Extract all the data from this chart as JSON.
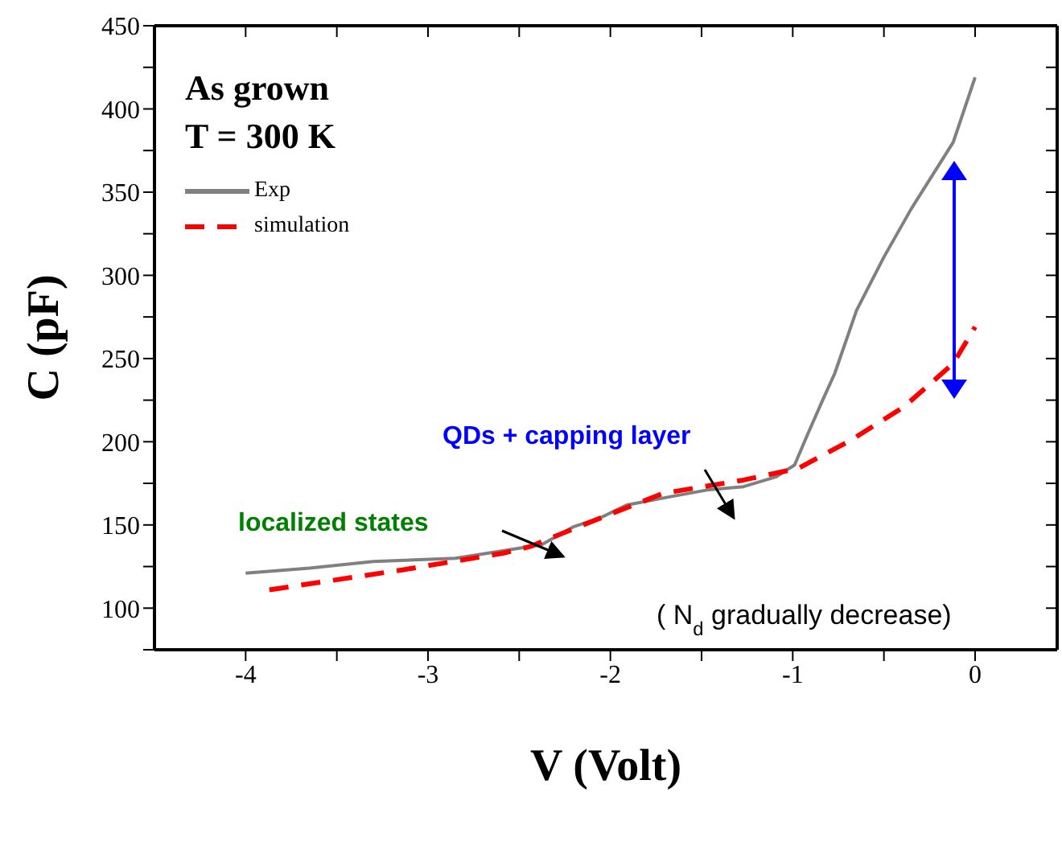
{
  "chart_data": {
    "type": "line",
    "xlabel": "V (Volt)",
    "ylabel": "C (pF)",
    "xlim": [
      -4.5,
      0.45
    ],
    "ylim": [
      75,
      450
    ],
    "xticks": [
      -4,
      {
        "value": -3.5,
        "label": null
      },
      -3,
      {
        "value": -2.5,
        "label": null
      },
      -2,
      {
        "value": -1.5,
        "label": null
      },
      -1,
      {
        "value": -0.5,
        "label": null
      },
      0
    ],
    "yticks": [
      {
        "value": 75,
        "label": null
      },
      100,
      {
        "value": 125,
        "label": null
      },
      150,
      {
        "value": 175,
        "label": null
      },
      200,
      {
        "value": 225,
        "label": null
      },
      250,
      {
        "value": 275,
        "label": null
      },
      300,
      {
        "value": 325,
        "label": null
      },
      350,
      {
        "value": 375,
        "label": null
      },
      400,
      {
        "value": 425,
        "label": null
      },
      450
    ],
    "legend": "top left",
    "marker": "none",
    "annotations": [
      "As grown",
      "T = 300 K",
      "QDs + capping layer",
      "localized states",
      "( N$_{d}$ gradually decrease)"
    ],
    "series": [
      {
        "name": "Exp",
        "color": "#808080",
        "line_style": "solid",
        "x": [
          -4,
          -3.65,
          -3.3,
          -2.85,
          -2.5,
          -2.38,
          -2.2,
          -2.06,
          -1.91,
          -1.67,
          -1.47,
          -1.27,
          -1.09,
          -0.99,
          -0.92,
          -0.84,
          -0.77,
          -0.65,
          -0.5,
          -0.35,
          -0.12,
          0
        ],
        "values": [
          121,
          124,
          128,
          130,
          136,
          138,
          149,
          154,
          162,
          167,
          171,
          173,
          179,
          186,
          204,
          224,
          241,
          279,
          311,
          340,
          380,
          419
        ]
      },
      {
        "name": "simulation",
        "color": "#ff0000",
        "line_style": "dashed",
        "x": [
          -3.87,
          -3.14,
          -2.59,
          -2.44,
          -2.15,
          -1.71,
          -1.27,
          -0.97,
          -0.68,
          -0.39,
          -0.12,
          0
        ],
        "values": [
          111,
          123,
          133,
          137,
          150,
          169,
          177,
          184,
          201,
          221,
          247,
          269
        ]
      }
    ]
  }
}
